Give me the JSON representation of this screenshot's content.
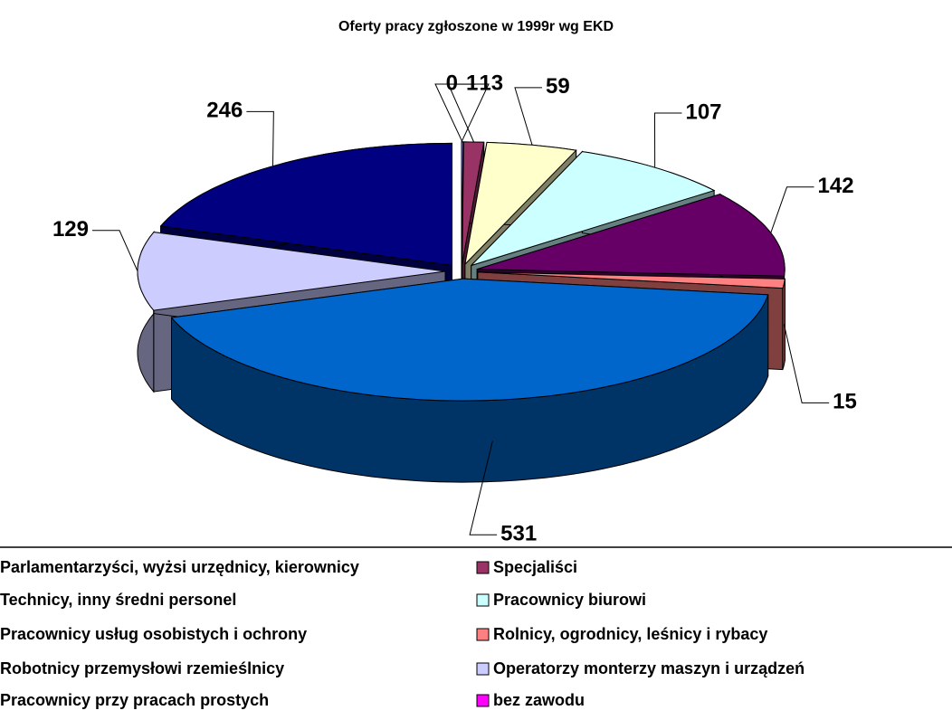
{
  "chart_data": {
    "type": "pie",
    "title": "Oferty pracy zgłoszone w 1999r wg EKD",
    "categories": [
      "Parlamentarzyści, wyżsi urzędnicy, kierownicy",
      "Specjaliści",
      "Technicy, inny średni personel",
      "Pracownicy biurowi",
      "Pracownicy usług osobistych i ochrony",
      "Rolnicy, ogrodnicy, leśnicy i rybacy",
      "Robotnicy przemysłowi rzemieślnicy",
      "Operatorzy monterzy maszyn i urządzeń",
      "Pracownicy przy pracach prostych",
      "bez zawodu"
    ],
    "values": [
      1,
      13,
      59,
      107,
      142,
      15,
      531,
      129,
      246,
      0
    ],
    "colors": [
      "#9999FF",
      "#993366",
      "#FFFFCC",
      "#CCFFFF",
      "#660066",
      "#FF8080",
      "#0066CC",
      "#CCCCFF",
      "#000080",
      "#FF00FF"
    ]
  }
}
